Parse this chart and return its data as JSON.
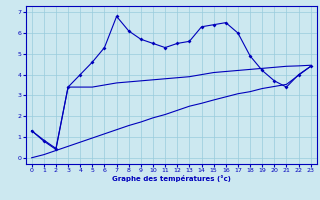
{
  "xlabel": "Graphe des températures (°c)",
  "ylabel": "",
  "background_color": "#cce8f0",
  "line_color": "#0000bb",
  "grid_color": "#99ccdd",
  "xlim": [
    -0.5,
    23.5
  ],
  "ylim": [
    -0.3,
    7.3
  ],
  "xticks": [
    0,
    1,
    2,
    3,
    4,
    5,
    6,
    7,
    8,
    9,
    10,
    11,
    12,
    13,
    14,
    15,
    16,
    17,
    18,
    19,
    20,
    21,
    22,
    23
  ],
  "yticks": [
    0,
    1,
    2,
    3,
    4,
    5,
    6,
    7
  ],
  "hours": [
    0,
    1,
    2,
    3,
    4,
    5,
    6,
    7,
    8,
    9,
    10,
    11,
    12,
    13,
    14,
    15,
    16,
    17,
    18,
    19,
    20,
    21,
    22,
    23
  ],
  "line1": [
    1.3,
    0.8,
    0.4,
    3.4,
    4.0,
    4.6,
    5.3,
    6.8,
    6.1,
    5.7,
    5.5,
    5.3,
    5.5,
    5.6,
    6.3,
    6.4,
    6.5,
    6.0,
    4.9,
    4.2,
    3.7,
    3.4,
    4.0,
    4.4
  ],
  "line2": [
    1.3,
    0.85,
    0.45,
    3.4,
    3.4,
    3.4,
    3.5,
    3.6,
    3.65,
    3.7,
    3.75,
    3.8,
    3.85,
    3.9,
    4.0,
    4.1,
    4.15,
    4.2,
    4.25,
    4.3,
    4.35,
    4.4,
    4.42,
    4.45
  ],
  "line3": [
    0.0,
    0.15,
    0.35,
    0.55,
    0.75,
    0.95,
    1.15,
    1.35,
    1.55,
    1.72,
    1.92,
    2.08,
    2.28,
    2.48,
    2.62,
    2.78,
    2.93,
    3.08,
    3.18,
    3.33,
    3.43,
    3.53,
    3.97,
    4.4
  ]
}
